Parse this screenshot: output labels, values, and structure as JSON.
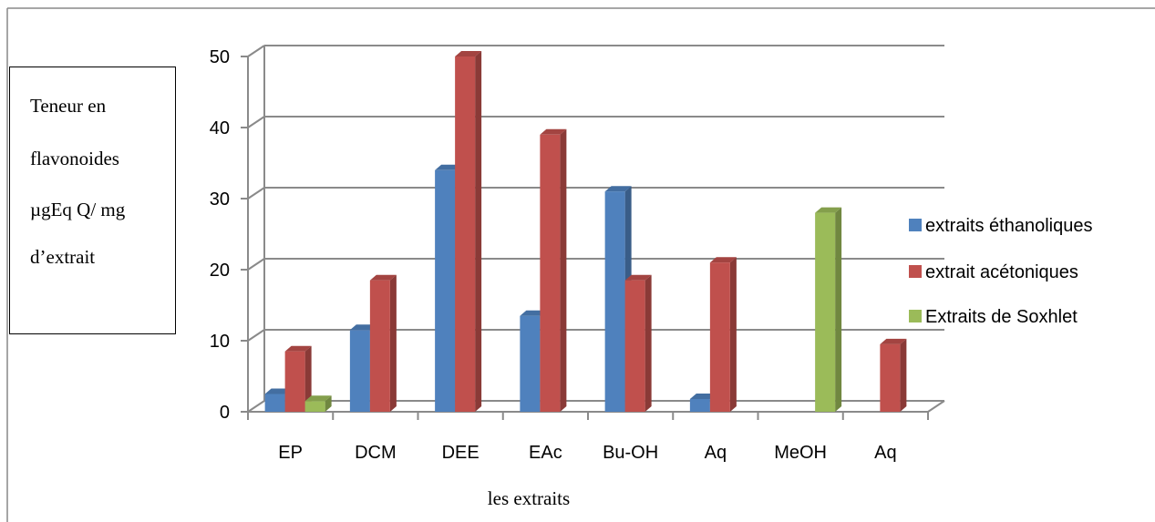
{
  "chart_data": {
    "type": "bar",
    "title": "",
    "xlabel": "les extraits",
    "ylabel_lines": [
      "Teneur  en",
      "flavonoides",
      "µgEq Q/ mg",
      "d’extrait"
    ],
    "categories": [
      "EP",
      "DCM",
      "DEE",
      "EAc",
      "Bu-OH",
      "Aq",
      "MeOH",
      "Aq"
    ],
    "yticks": [
      "0",
      "10",
      "20",
      "30",
      "40",
      "50"
    ],
    "ylim": [
      0,
      50
    ],
    "grid": true,
    "legend_position": "right",
    "series": [
      {
        "name": "extraits éthanoliques",
        "color": "#4F81BD",
        "values": [
          2.5,
          11.5,
          34,
          13.5,
          31,
          1.8,
          null,
          null
        ]
      },
      {
        "name": "extrait acétoniques",
        "color": "#C0504D",
        "values": [
          8.5,
          18.5,
          50,
          39,
          18.5,
          21,
          null,
          9.5
        ]
      },
      {
        "name": "Extraits de Soxhlet",
        "color": "#9BBB59",
        "values": [
          1.5,
          null,
          null,
          null,
          null,
          null,
          28,
          null
        ]
      }
    ]
  }
}
